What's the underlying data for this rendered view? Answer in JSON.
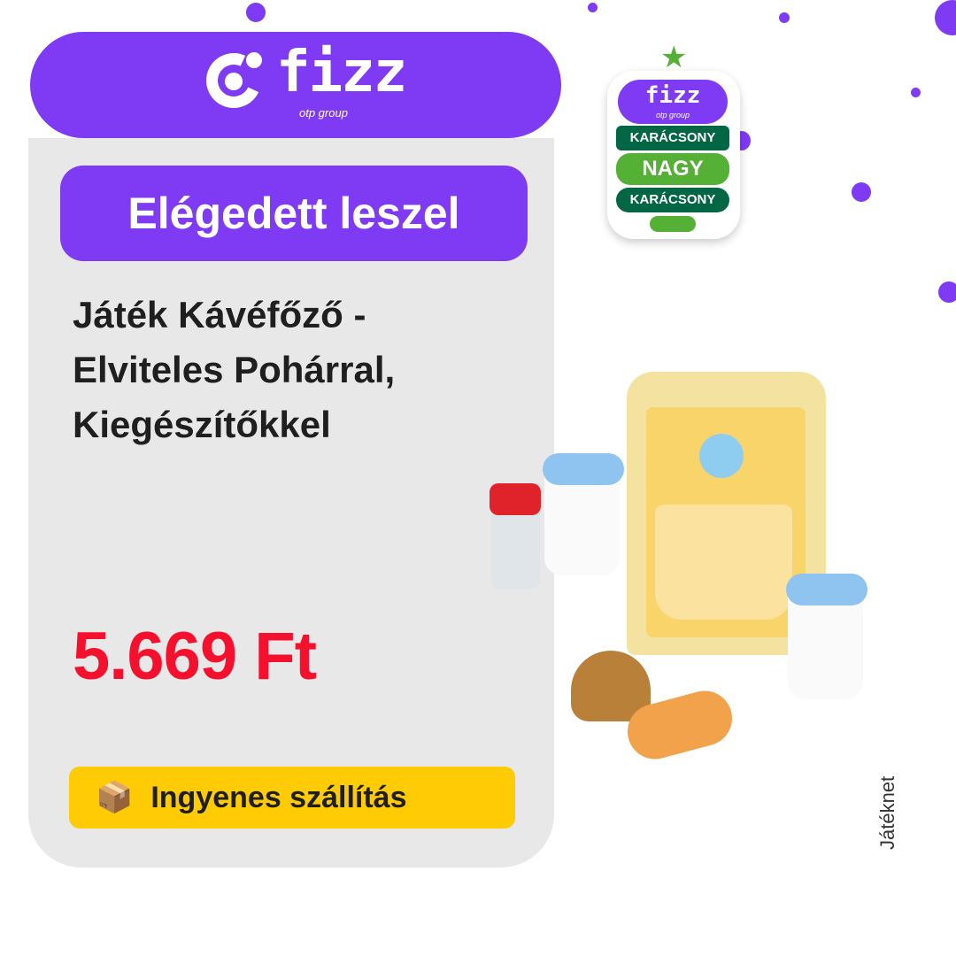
{
  "brand": {
    "name": "fizz",
    "sub": "otp group"
  },
  "badge": {
    "brand": "fizz",
    "sub": "otp group",
    "line1": "KARÁCSONY",
    "line2": "NAGY",
    "line3": "KARÁCSONY"
  },
  "tagline": "Elégedett leszel",
  "product": {
    "title": "Játék Kávéfőző - Elviteles Pohárral, Kiegészítőkkel",
    "price": "5.669 Ft"
  },
  "shipping": {
    "icon": "fast-delivery-box-icon",
    "label": "Ingyenes szállítás"
  },
  "category": "Játéknet",
  "colors": {
    "brand": "#7f3af4",
    "price": "#f5102e",
    "shipping": "#ffcb05",
    "card": "#e8e8e8",
    "tree_dark": "#006644",
    "tree_light": "#55b135"
  }
}
